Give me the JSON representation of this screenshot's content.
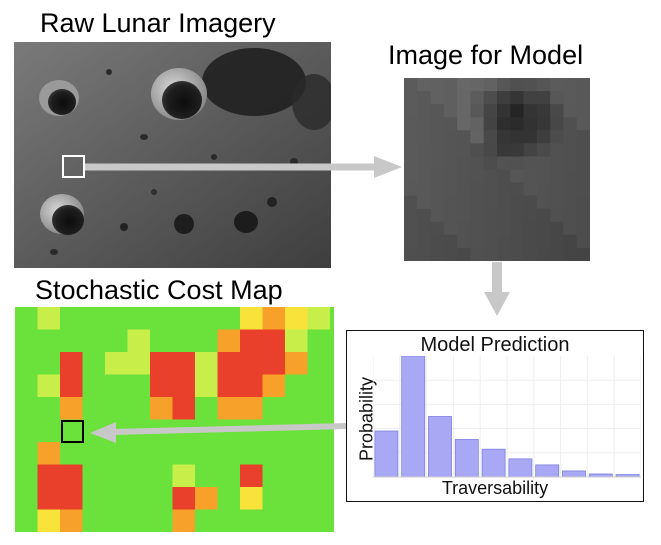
{
  "titles": {
    "raw": "Raw Lunar Imagery",
    "model_input": "Image for Model",
    "cost_map": "Stochastic Cost Map"
  },
  "prediction_panel": {
    "title": "Model Prediction",
    "xlabel": "Traversability",
    "ylabel": "Probability"
  },
  "colors": {
    "cost_green": "#6be13b",
    "cost_yellow_green": "#c8ee4a",
    "cost_yellow": "#f7e33a",
    "cost_orange": "#f7a12b",
    "cost_red": "#e8402a",
    "bar_fill": "#a8a8f4",
    "bar_stroke": "#7f7fe0",
    "arrow_gray": "#c8c8c8",
    "highlight_white": "#ffffff",
    "highlight_black": "#000000"
  },
  "chart_data": {
    "type": "bar",
    "title": "Model Prediction",
    "xlabel": "Traversability",
    "ylabel": "Probability",
    "values": [
      0.38,
      1.0,
      0.5,
      0.31,
      0.23,
      0.15,
      0.1,
      0.05,
      0.025,
      0.02
    ],
    "ylim": [
      0,
      1.0
    ],
    "grid": true
  }
}
